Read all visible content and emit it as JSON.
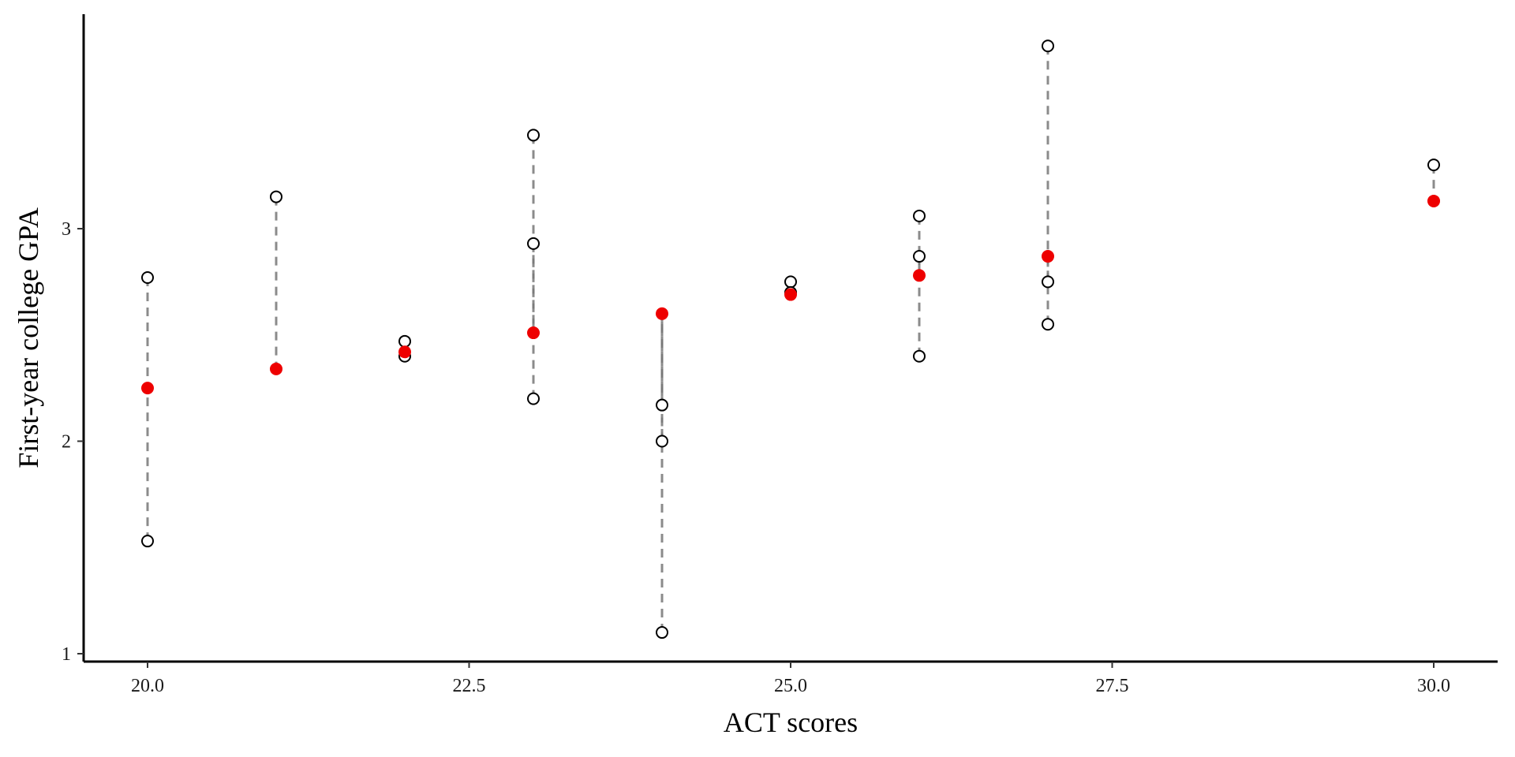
{
  "chart_data": {
    "type": "scatter",
    "title": "",
    "xlabel": "ACT scores",
    "ylabel": "First-year college GPA",
    "xlim": [
      19.5,
      30.5
    ],
    "ylim": [
      0.96,
      4.0
    ],
    "x_ticks": [
      20.0,
      22.5,
      25.0,
      27.5,
      30.0
    ],
    "x_tick_labels": [
      "20.0",
      "22.5",
      "25.0",
      "27.5",
      "30.0"
    ],
    "y_ticks": [
      1,
      2,
      3
    ],
    "y_tick_labels": [
      "1",
      "2",
      "3"
    ],
    "grid": false,
    "legend": "none",
    "series": [
      {
        "role": "observed",
        "marker": "open-circle",
        "color": "#000000",
        "points": [
          {
            "x": 20,
            "y": 2.77
          },
          {
            "x": 20,
            "y": 1.53
          },
          {
            "x": 21,
            "y": 3.15
          },
          {
            "x": 22,
            "y": 2.47
          },
          {
            "x": 22,
            "y": 2.4
          },
          {
            "x": 23,
            "y": 3.44
          },
          {
            "x": 23,
            "y": 2.93
          },
          {
            "x": 23,
            "y": 2.2
          },
          {
            "x": 24,
            "y": 2.17
          },
          {
            "x": 24,
            "y": 2.0
          },
          {
            "x": 24,
            "y": 1.1
          },
          {
            "x": 25,
            "y": 2.75
          },
          {
            "x": 25,
            "y": 2.7
          },
          {
            "x": 26,
            "y": 3.06
          },
          {
            "x": 26,
            "y": 2.87
          },
          {
            "x": 26,
            "y": 2.4
          },
          {
            "x": 27,
            "y": 3.86
          },
          {
            "x": 27,
            "y": 2.75
          },
          {
            "x": 27,
            "y": 2.55
          },
          {
            "x": 30,
            "y": 3.3
          }
        ]
      },
      {
        "role": "group-mean",
        "marker": "filled-circle",
        "color": "#ee0000",
        "points": [
          {
            "x": 20,
            "y": 2.25
          },
          {
            "x": 21,
            "y": 2.34
          },
          {
            "x": 22,
            "y": 2.42
          },
          {
            "x": 23,
            "y": 2.51
          },
          {
            "x": 24,
            "y": 2.6
          },
          {
            "x": 25,
            "y": 2.69
          },
          {
            "x": 26,
            "y": 2.78
          },
          {
            "x": 27,
            "y": 2.87
          },
          {
            "x": 30,
            "y": 3.13
          }
        ]
      }
    ],
    "segments_color": "#777777",
    "segments_style": "dashed"
  }
}
